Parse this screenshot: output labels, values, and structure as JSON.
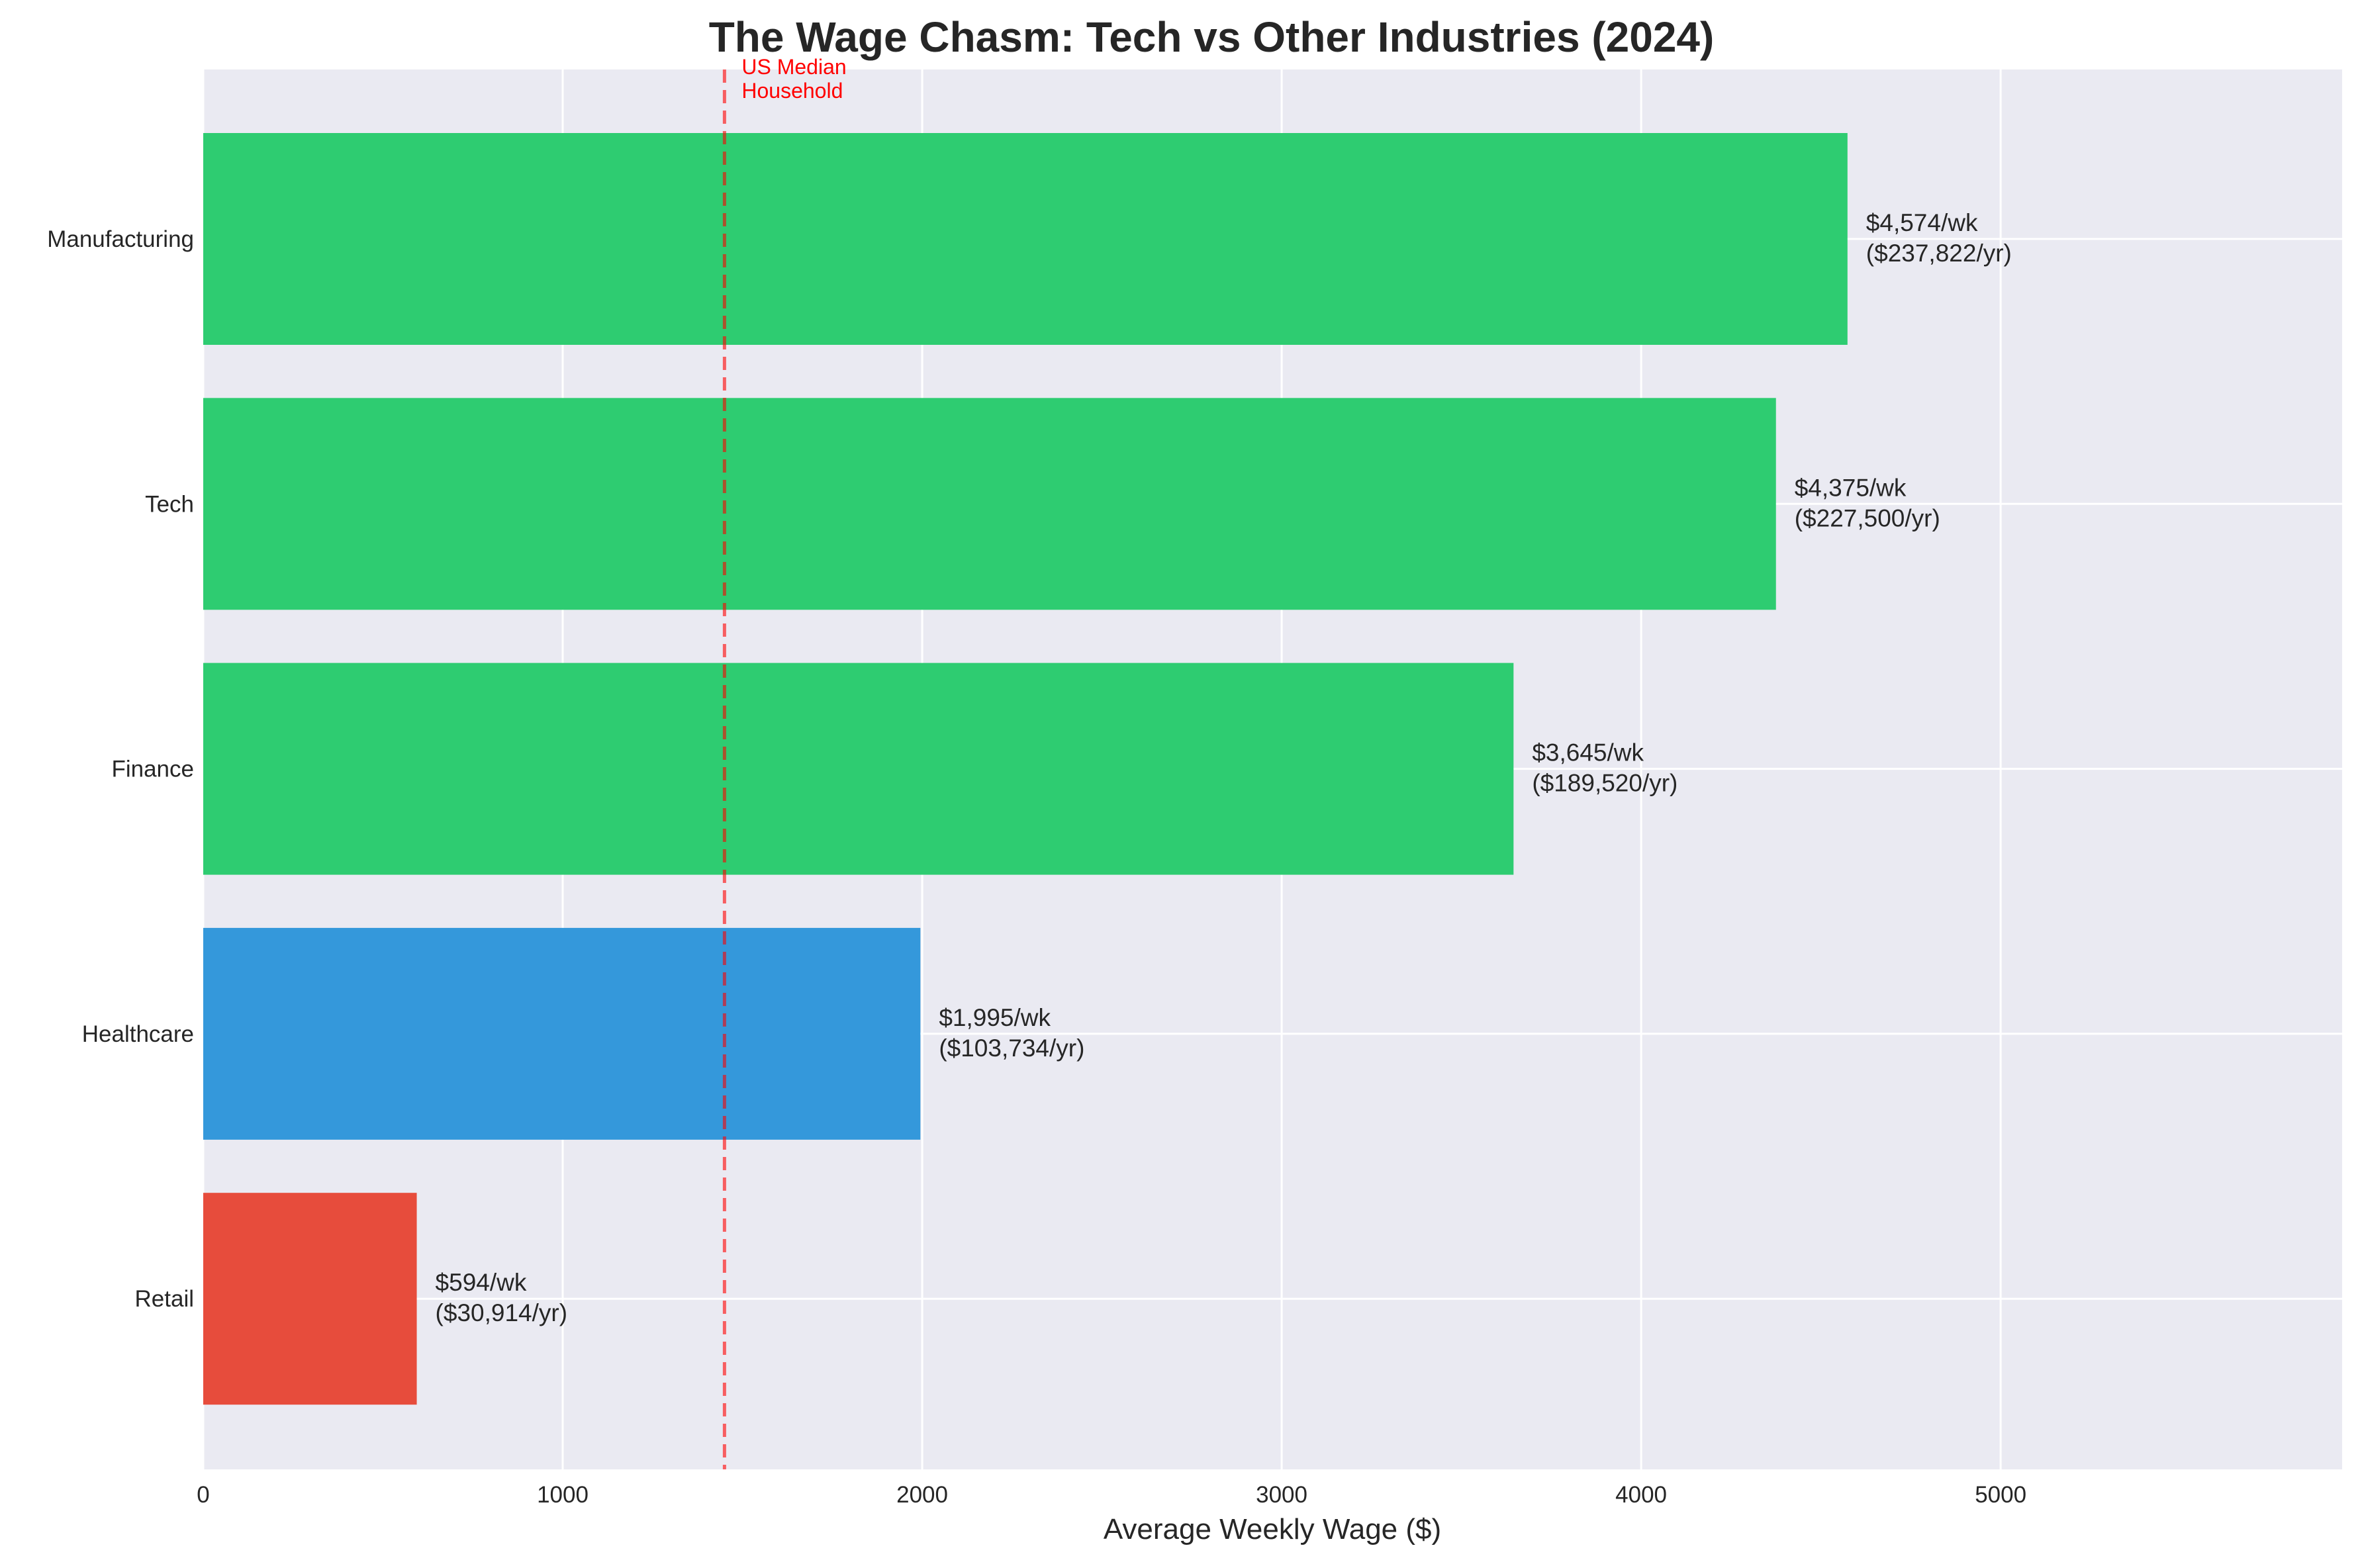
{
  "chart_data": {
    "type": "bar",
    "orientation": "horizontal",
    "title": "The Wage Chasm: Tech vs Other Industries (2024)",
    "xlabel": "Average Weekly Wage ($)",
    "ylabel": "",
    "xlim": [
      0,
      5950
    ],
    "xticks": [
      0,
      1000,
      2000,
      3000,
      4000,
      5000
    ],
    "grid": true,
    "categories": [
      "Manufacturing",
      "Tech",
      "Finance",
      "Healthcare",
      "Retail"
    ],
    "values": [
      4574,
      4375,
      3645,
      1995,
      594
    ],
    "colors": [
      "#2ecc71",
      "#2ecc71",
      "#2ecc71",
      "#3498db",
      "#e74c3c"
    ],
    "data_labels": [
      [
        "$4,574/wk",
        "($237,822/yr)"
      ],
      [
        "$4,375/wk",
        "($227,500/yr)"
      ],
      [
        "$3,645/wk",
        "($189,520/yr)"
      ],
      [
        "$1,995/wk",
        "($103,734/yr)"
      ],
      [
        "$594/wk",
        "($30,914/yr)"
      ]
    ],
    "reference_line": {
      "value": 1450,
      "label": [
        "US Median",
        "Household"
      ],
      "color": "#ff0000",
      "style": "dashed"
    },
    "background_color": "#eaeaf2",
    "grid_color": "#ffffff"
  }
}
